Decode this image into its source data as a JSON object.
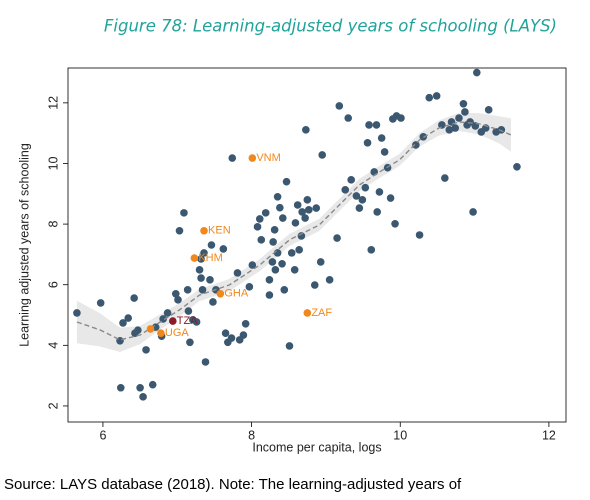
{
  "chart_data": {
    "type": "scatter",
    "title": "Figure 78: Learning-adjusted years of schooling (LAYS)",
    "x_label": "Income per capita, logs",
    "y_label": "Learning adjusted years of schooling",
    "xlim": [
      5.53,
      12.23
    ],
    "ylim": [
      1.47,
      13.15
    ],
    "xticks": [
      6,
      8,
      10,
      12
    ],
    "yticks": [
      2,
      4,
      6,
      8,
      10,
      12
    ],
    "points": {
      "color": "#3b5870",
      "x": [
        5.65,
        5.97,
        6.23,
        6.27,
        6.34,
        6.42,
        6.43,
        6.47,
        6.24,
        6.5,
        6.54,
        6.67,
        6.58,
        6.71,
        6.79,
        6.81,
        6.87,
        6.98,
        7.01,
        7.03,
        7.09,
        7.14,
        7.15,
        7.17,
        7.21,
        7.26,
        7.3,
        7.32,
        7.32,
        7.36,
        7.34,
        7.38,
        7.44,
        7.46,
        7.48,
        7.52,
        7.62,
        7.65,
        7.68,
        7.73,
        7.81,
        7.74,
        7.84,
        7.92,
        7.89,
        7.97,
        8.01,
        8.08,
        8.11,
        8.13,
        8.19,
        8.24,
        8.24,
        8.29,
        8.31,
        8.35,
        8.28,
        8.32,
        8.35,
        8.38,
        8.42,
        8.41,
        8.47,
        8.44,
        8.51,
        8.54,
        8.58,
        8.59,
        8.62,
        8.64,
        8.67,
        8.68,
        8.72,
        8.73,
        8.75,
        8.77,
        8.85,
        8.87,
        8.93,
        8.95,
        9.05,
        9.15,
        9.18,
        9.26,
        9.3,
        9.34,
        9.41,
        9.45,
        9.49,
        9.53,
        9.56,
        9.58,
        9.61,
        9.65,
        9.68,
        9.69,
        9.72,
        9.75,
        9.79,
        9.83,
        9.87,
        9.9,
        9.93,
        9.95,
        10.01,
        10.21,
        10.26,
        10.31,
        10.39,
        10.49,
        10.56,
        10.6,
        10.66,
        10.69,
        10.74,
        10.79,
        10.85,
        10.87,
        10.9,
        10.94,
        10.98,
        11.01,
        11.03,
        11.09,
        11.15,
        11.19,
        11.29,
        11.36,
        11.57
      ],
      "y": [
        5.07,
        5.4,
        4.15,
        4.74,
        4.9,
        5.56,
        4.4,
        4.5,
        2.6,
        2.6,
        2.3,
        2.7,
        3.85,
        4.6,
        4.3,
        4.87,
        5.07,
        5.7,
        5.5,
        7.78,
        8.37,
        5.83,
        5.13,
        4.1,
        4.84,
        4.77,
        6.49,
        6.85,
        6.22,
        7.05,
        5.83,
        3.45,
        6.16,
        7.31,
        5.43,
        5.83,
        7.18,
        4.4,
        4.1,
        4.24,
        6.39,
        10.18,
        4.18,
        4.71,
        4.34,
        5.93,
        6.65,
        7.91,
        8.17,
        7.48,
        8.37,
        6.16,
        5.66,
        7.41,
        7.81,
        8.9,
        6.75,
        6.49,
        7.05,
        8.54,
        8.2,
        6.69,
        9.4,
        5.83,
        3.98,
        7.05,
        6.49,
        8.04,
        8.63,
        7.15,
        7.61,
        8.4,
        8.2,
        11.11,
        8.8,
        8.47,
        5.99,
        8.53,
        6.75,
        10.28,
        6.16,
        7.54,
        11.9,
        9.13,
        11.5,
        9.46,
        8.93,
        8.53,
        8.8,
        9.2,
        10.68,
        11.27,
        7.15,
        9.72,
        11.27,
        8.4,
        9.06,
        10.84,
        10.38,
        9.86,
        8.86,
        11.47,
        8.01,
        11.57,
        11.5,
        10.61,
        7.64,
        10.88,
        12.17,
        12.23,
        11.27,
        9.52,
        11.11,
        11.37,
        11.17,
        11.5,
        11.97,
        11.7,
        11.27,
        11.37,
        8.4,
        11.24,
        13.0,
        11.04,
        11.17,
        11.77,
        11.04,
        11.11,
        9.89
      ]
    },
    "highlighted": {
      "x": [
        8.01,
        7.36,
        7.23,
        7.58,
        8.75,
        6.94,
        6.78,
        6.64
      ],
      "y": [
        10.18,
        7.78,
        6.88,
        5.7,
        5.07,
        4.8,
        4.4,
        4.54
      ],
      "labels": [
        "VNM",
        "KEN",
        "KHM",
        "GHA",
        "ZAF",
        "TZA",
        "UGA",
        null
      ],
      "colors": [
        "#f0881c",
        "#f0881c",
        "#f0881c",
        "#f0881c",
        "#f0881c",
        "#8b1a2b",
        "#f0881c",
        "#f0881c"
      ]
    },
    "fit": {
      "color": "#8a8a8a",
      "band_color": "#e4e4e4",
      "x": [
        5.65,
        5.96,
        6.23,
        6.5,
        6.77,
        7.03,
        7.3,
        7.7,
        8.11,
        8.51,
        8.91,
        9.18,
        9.45,
        9.72,
        9.99,
        10.26,
        10.52,
        10.79,
        11.06,
        11.33,
        11.49
      ],
      "y": [
        4.77,
        4.51,
        4.18,
        4.34,
        4.77,
        5.17,
        5.66,
        5.99,
        6.65,
        7.48,
        7.97,
        8.63,
        9.29,
        9.72,
        10.12,
        10.78,
        11.17,
        11.37,
        11.31,
        11.11,
        10.94
      ],
      "lower": [
        4.07,
        3.96,
        3.78,
        4.04,
        4.52,
        4.95,
        5.46,
        5.79,
        6.45,
        7.28,
        7.77,
        8.43,
        9.09,
        9.52,
        9.92,
        10.56,
        10.92,
        11.07,
        10.96,
        10.66,
        10.39
      ],
      "upper": [
        5.47,
        5.06,
        4.58,
        4.64,
        5.02,
        5.39,
        5.86,
        6.19,
        6.85,
        7.68,
        8.17,
        8.83,
        9.49,
        9.92,
        10.32,
        11.0,
        11.42,
        11.67,
        11.66,
        11.56,
        11.49
      ]
    }
  },
  "source": "Source: LAYS database (2018). Note: The learning-adjusted years of"
}
